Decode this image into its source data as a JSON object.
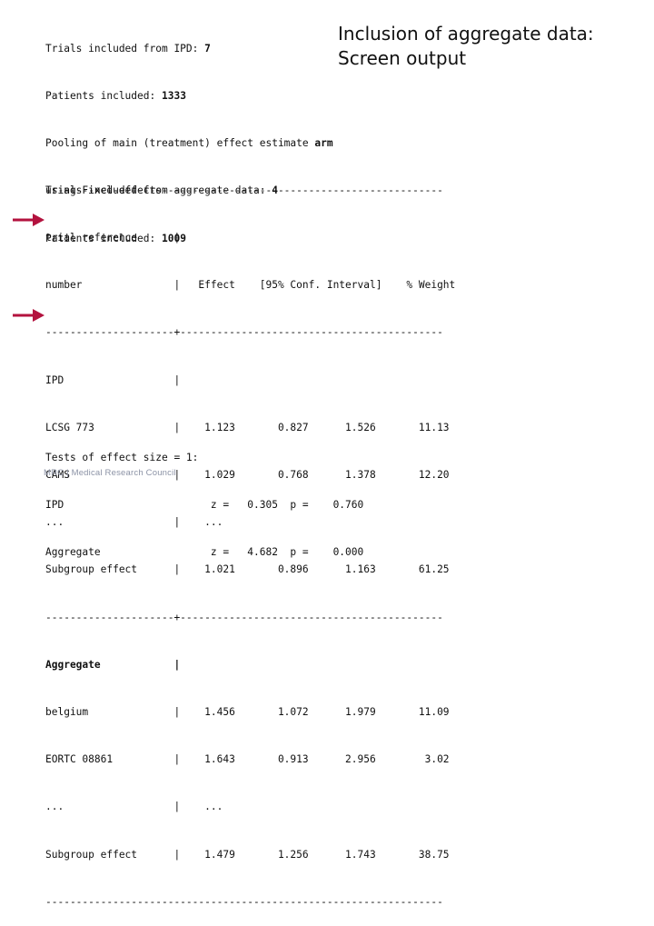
{
  "title": {
    "line1": "Inclusion of aggregate data:",
    "line2": "Screen output"
  },
  "summary": {
    "ipd_trials_label": "Trials included from IPD:",
    "ipd_trials_value": "7",
    "ipd_patients_label": "Patients included:",
    "ipd_patients_value": "1333",
    "agg_trials_label": "Trials included from aggregate data:",
    "agg_trials_value": "4",
    "agg_patients_label": "Patients included:",
    "agg_patients_value": "1009"
  },
  "pooling": {
    "line1_text": "Pooling of main (treatment) effect estimate",
    "line1_var": "arm",
    "line2": "using Fixed-effects"
  },
  "table": {
    "rule_top": "-----------------------------------------------------------------",
    "header1": "trial reference      |",
    "header2": "number               |   Effect    [95% Conf. Interval]    % Weight",
    "rule_mid": "---------------------+-------------------------------------------",
    "ipd_rows": [
      "IPD                  |",
      "LCSG 773             |    1.123       0.827      1.526       11.13",
      "CAMS                 |    1.029       0.768      1.378       12.20",
      "...                  |    ...",
      "Subgroup effect      |    1.021       0.896      1.163       61.25"
    ],
    "agg_rows": [
      "Aggregate            |",
      "belgium              |    1.456       1.072      1.979       11.09",
      "EORTC 08861          |    1.643       0.913      2.956        3.02",
      "...                  |    ...",
      "Subgroup effect      |    1.479       1.256      1.743       38.75"
    ],
    "rule_bottom": "-----------------------------------------------------------------"
  },
  "tests": {
    "heading": "Tests of effect size = 1:",
    "rows": [
      "IPD                        z =   0.305  p =    0.760",
      "Aggregate                  z =   4.682  p =    0.000"
    ]
  },
  "footer": {
    "text": "MRC | Medical Research Council"
  },
  "colors": {
    "arrow": "#b3123e",
    "footer": "#8c93a6"
  },
  "icons": [
    "right-arrow-icon"
  ]
}
